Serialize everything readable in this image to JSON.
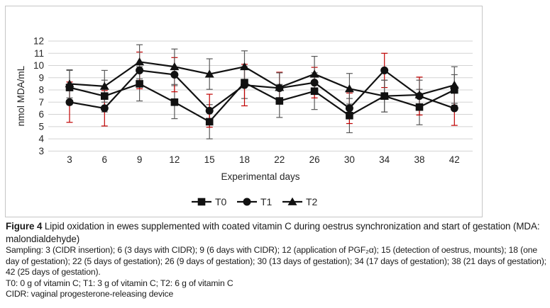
{
  "figure": {
    "caption_label": "Figure 4",
    "caption_text": " Lipid oxidation in ewes supplemented with coated vitamin C during oestrus synchronization and start of gestation (MDA: malondialdehyde)",
    "sampling_note": "Sampling: 3 (CIDR insertion); 6 (3 days with CIDR); 9 (6 days with CIDR); 12 (application of PGF₂α); 15 (detection of oestrus, mounts); 18 (one day of gestation); 22 (5 days of gestation); 26 (9 days of gestation); 30 (13 days of gestation); 34 (17 days of gestation); 38 (21 days of gestation); 42 (25 days of gestation).",
    "treatments_note": "T0: 0 g of vitamin C; T1: 3 g of vitamin C; T2: 6 g of vitamin C",
    "cidr_note": "CIDR: vaginal progesterone-releasing device"
  },
  "chart_data": {
    "type": "line",
    "title": "",
    "xlabel": "Experimental days",
    "ylabel": "nmol MDA/mL",
    "x": [
      3,
      6,
      9,
      12,
      15,
      18,
      22,
      26,
      30,
      34,
      38,
      42
    ],
    "ylim": [
      3,
      12
    ],
    "yticks": [
      12,
      11,
      10,
      9,
      8,
      7,
      6,
      5,
      4,
      3
    ],
    "grid": true,
    "legend_position": "bottom",
    "series": [
      {
        "name": "T0",
        "marker": "square",
        "values": [
          8.2,
          7.5,
          8.5,
          7.0,
          5.4,
          8.6,
          7.1,
          7.9,
          5.9,
          7.5,
          6.6,
          8.0
        ],
        "errors": [
          1.4,
          1.3,
          1.4,
          1.35,
          1.4,
          1.3,
          1.35,
          1.5,
          1.4,
          1.3,
          1.45,
          1.25
        ],
        "error_color": "#595959"
      },
      {
        "name": "T1",
        "marker": "circle",
        "values": [
          7.0,
          6.5,
          9.6,
          9.25,
          6.3,
          8.4,
          8.15,
          8.6,
          6.5,
          9.6,
          7.5,
          6.5
        ],
        "errors": [
          1.65,
          1.45,
          1.5,
          1.4,
          1.35,
          1.7,
          1.3,
          1.25,
          1.25,
          1.4,
          1.55,
          1.4
        ],
        "error_color": "#c00000"
      },
      {
        "name": "T2",
        "marker": "triangle",
        "values": [
          8.5,
          8.3,
          10.3,
          9.9,
          9.3,
          9.9,
          8.2,
          9.3,
          8.1,
          7.5,
          7.6,
          8.4
        ],
        "errors": [
          1.15,
          1.3,
          1.4,
          1.45,
          1.25,
          1.3,
          1.2,
          1.45,
          1.25,
          1.3,
          1.2,
          1.5
        ],
        "error_color": "#595959"
      }
    ],
    "colors": {
      "line": "#111111",
      "marker": "#111111",
      "grid": "#d3d3d3",
      "axis_text": "#262626"
    }
  }
}
